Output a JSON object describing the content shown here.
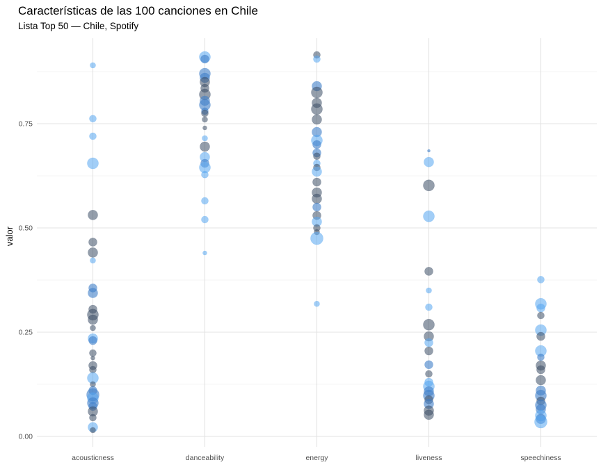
{
  "chart_data": {
    "type": "scatter",
    "title": "Características de las 100 canciones en Chile",
    "subtitle": "Lista Top 50 — Chile, Spotify",
    "xlabel": "",
    "ylabel": "valor",
    "categories": [
      "acousticness",
      "danceability",
      "energy",
      "liveness",
      "speechiness"
    ],
    "ylim": [
      -0.02,
      0.93
    ],
    "y_ticks": [
      0.0,
      0.25,
      0.5,
      0.75
    ],
    "y_tick_labels": [
      "0.00",
      "0.25",
      "0.50",
      "0.75"
    ],
    "grid": true,
    "legend": "none",
    "colors": {
      "light": "#56A6F0",
      "mid": "#3F7FC8",
      "dark": "#3C4E66"
    },
    "points": {
      "acousticness": [
        [
          0.89,
          4,
          "light"
        ],
        [
          0.762,
          5,
          "light"
        ],
        [
          0.72,
          5,
          "light"
        ],
        [
          0.655,
          8,
          "light"
        ],
        [
          0.531,
          7,
          "dark"
        ],
        [
          0.466,
          6,
          "dark"
        ],
        [
          0.441,
          7,
          "dark"
        ],
        [
          0.422,
          4,
          "light"
        ],
        [
          0.356,
          6,
          "mid"
        ],
        [
          0.344,
          7,
          "mid"
        ],
        [
          0.305,
          6,
          "dark"
        ],
        [
          0.292,
          8,
          "dark"
        ],
        [
          0.28,
          7,
          "dark"
        ],
        [
          0.26,
          4,
          "dark"
        ],
        [
          0.235,
          7,
          "light"
        ],
        [
          0.23,
          6,
          "mid"
        ],
        [
          0.2,
          5,
          "dark"
        ],
        [
          0.188,
          3,
          "dark"
        ],
        [
          0.17,
          6,
          "dark"
        ],
        [
          0.16,
          5,
          "dark"
        ],
        [
          0.14,
          8,
          "light"
        ],
        [
          0.125,
          4,
          "dark"
        ],
        [
          0.11,
          6,
          "mid"
        ],
        [
          0.1,
          9,
          "mid"
        ],
        [
          0.092,
          8,
          "light"
        ],
        [
          0.08,
          8,
          "mid"
        ],
        [
          0.072,
          6,
          "mid"
        ],
        [
          0.06,
          7,
          "dark"
        ],
        [
          0.045,
          5,
          "dark"
        ],
        [
          0.022,
          7,
          "light"
        ],
        [
          0.015,
          4,
          "dark"
        ]
      ],
      "danceability": [
        [
          0.91,
          8,
          "light"
        ],
        [
          0.905,
          6,
          "mid"
        ],
        [
          0.87,
          8,
          "mid"
        ],
        [
          0.86,
          7,
          "mid"
        ],
        [
          0.85,
          7,
          "dark"
        ],
        [
          0.835,
          6,
          "dark"
        ],
        [
          0.82,
          8,
          "dark"
        ],
        [
          0.805,
          7,
          "mid"
        ],
        [
          0.795,
          8,
          "mid"
        ],
        [
          0.78,
          5,
          "mid"
        ],
        [
          0.775,
          5,
          "dark"
        ],
        [
          0.76,
          4,
          "dark"
        ],
        [
          0.74,
          3,
          "dark"
        ],
        [
          0.715,
          4,
          "light"
        ],
        [
          0.695,
          7,
          "dark"
        ],
        [
          0.67,
          7,
          "light"
        ],
        [
          0.655,
          6,
          "mid"
        ],
        [
          0.645,
          8,
          "light"
        ],
        [
          0.628,
          5,
          "light"
        ],
        [
          0.565,
          5,
          "light"
        ],
        [
          0.52,
          5,
          "light"
        ],
        [
          0.44,
          3,
          "light"
        ]
      ],
      "energy": [
        [
          0.915,
          5,
          "dark"
        ],
        [
          0.905,
          5,
          "light"
        ],
        [
          0.84,
          7,
          "mid"
        ],
        [
          0.825,
          8,
          "dark"
        ],
        [
          0.8,
          7,
          "dark"
        ],
        [
          0.785,
          8,
          "dark"
        ],
        [
          0.76,
          7,
          "dark"
        ],
        [
          0.73,
          7,
          "mid"
        ],
        [
          0.71,
          8,
          "light"
        ],
        [
          0.7,
          6,
          "mid"
        ],
        [
          0.68,
          6,
          "mid"
        ],
        [
          0.672,
          5,
          "dark"
        ],
        [
          0.655,
          5,
          "light"
        ],
        [
          0.645,
          5,
          "dark"
        ],
        [
          0.635,
          7,
          "light"
        ],
        [
          0.61,
          6,
          "dark"
        ],
        [
          0.585,
          7,
          "dark"
        ],
        [
          0.57,
          7,
          "dark"
        ],
        [
          0.55,
          6,
          "mid"
        ],
        [
          0.53,
          6,
          "dark"
        ],
        [
          0.515,
          7,
          "light"
        ],
        [
          0.5,
          5,
          "dark"
        ],
        [
          0.49,
          4,
          "dark"
        ],
        [
          0.475,
          9,
          "light"
        ],
        [
          0.318,
          4,
          "light"
        ]
      ],
      "liveness": [
        [
          0.685,
          2,
          "mid"
        ],
        [
          0.658,
          7,
          "light"
        ],
        [
          0.602,
          8,
          "dark"
        ],
        [
          0.528,
          8,
          "light"
        ],
        [
          0.396,
          6,
          "dark"
        ],
        [
          0.35,
          4,
          "light"
        ],
        [
          0.31,
          5,
          "light"
        ],
        [
          0.268,
          8,
          "dark"
        ],
        [
          0.24,
          7,
          "dark"
        ],
        [
          0.225,
          6,
          "light"
        ],
        [
          0.205,
          6,
          "dark"
        ],
        [
          0.172,
          6,
          "mid"
        ],
        [
          0.15,
          5,
          "dark"
        ],
        [
          0.13,
          6,
          "light"
        ],
        [
          0.12,
          8,
          "light"
        ],
        [
          0.108,
          7,
          "mid"
        ],
        [
          0.098,
          8,
          "mid"
        ],
        [
          0.088,
          6,
          "dark"
        ],
        [
          0.078,
          7,
          "mid"
        ],
        [
          0.062,
          7,
          "dark"
        ],
        [
          0.052,
          7,
          "dark"
        ]
      ],
      "speechiness": [
        [
          0.376,
          5,
          "light"
        ],
        [
          0.318,
          8,
          "light"
        ],
        [
          0.308,
          6,
          "light"
        ],
        [
          0.29,
          5,
          "dark"
        ],
        [
          0.255,
          8,
          "light"
        ],
        [
          0.24,
          6,
          "dark"
        ],
        [
          0.205,
          8,
          "light"
        ],
        [
          0.19,
          5,
          "mid"
        ],
        [
          0.17,
          7,
          "dark"
        ],
        [
          0.16,
          6,
          "dark"
        ],
        [
          0.135,
          7,
          "dark"
        ],
        [
          0.11,
          7,
          "mid"
        ],
        [
          0.098,
          8,
          "mid"
        ],
        [
          0.085,
          6,
          "dark"
        ],
        [
          0.075,
          8,
          "mid"
        ],
        [
          0.065,
          7,
          "mid"
        ],
        [
          0.05,
          8,
          "light"
        ],
        [
          0.042,
          7,
          "mid"
        ],
        [
          0.035,
          9,
          "light"
        ]
      ]
    }
  }
}
